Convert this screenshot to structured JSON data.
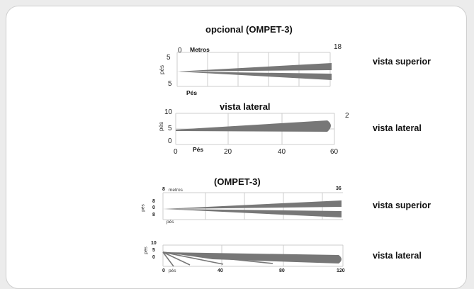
{
  "section1": {
    "title": "opcional (OMPET-3)",
    "top_view": {
      "label": "vista superior",
      "unit_label": "Metros",
      "unit_zero": "0",
      "max": "18",
      "y_label": "pés",
      "y_top": "5",
      "y_bottom": "5",
      "x_unit": "Pés"
    },
    "side_view": {
      "title": "vista lateral",
      "label": "vista lateral",
      "right_value": "2",
      "y_label": "pés",
      "y_ticks": [
        "10",
        "5",
        "0"
      ],
      "x_ticks": [
        "0",
        "20",
        "40",
        "60"
      ],
      "x_unit": "Pés"
    }
  },
  "section2": {
    "title": "(OMPET-3)",
    "top_view": {
      "label": "vista superior",
      "unit_zero": "8",
      "unit_label": "metros",
      "max": "36",
      "y_label": "pés",
      "y_ticks": [
        "8",
        "0",
        "8"
      ],
      "x_unit": "pés"
    },
    "side_view": {
      "label": "vista lateral",
      "y_label": "pés",
      "y_ticks": [
        "10",
        "5",
        "0"
      ],
      "x_unit": "pés",
      "x_zero": "0",
      "x_ticks": [
        "40",
        "80",
        "120"
      ]
    }
  },
  "colors": {
    "beam": "#777777",
    "grid": "#c8c8c8",
    "axis": "#9a9a9a"
  }
}
